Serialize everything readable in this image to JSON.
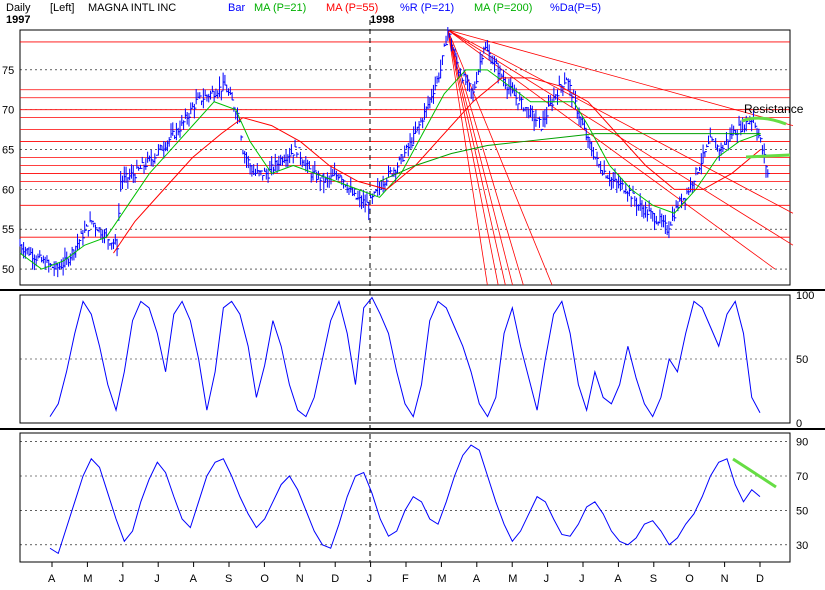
{
  "header": {
    "period": "Daily",
    "scale_side": "[Left]",
    "symbol_name": "MAGNA INTL INC",
    "year_start": "1997",
    "year_mid": "1998",
    "legend": [
      {
        "label": "Bar",
        "color": "#0000ff"
      },
      {
        "label": "MA (P=21)",
        "color": "#00b000"
      },
      {
        "label": "MA (P=55)",
        "color": "#ff0000"
      },
      {
        "label": "%R (P=21)",
        "color": "#0000ff"
      },
      {
        "label": "MA (P=200)",
        "color": "#00b000"
      },
      {
        "label": "%Da(P=5)",
        "color": "#0000ff"
      }
    ]
  },
  "colors": {
    "price_bars": "#0000ff",
    "ma21": "#00c000",
    "ma55": "#ff0000",
    "ma200": "#00a000",
    "support_resistance": "#ff0000",
    "fan_lines": "#ff0000",
    "highlight": "#66dd44",
    "indicator": "#0000ff",
    "grid": "#000000"
  },
  "chart_data": [
    {
      "type": "line",
      "panel": "price",
      "ylim": [
        48,
        80
      ],
      "yticks": [
        50,
        55,
        60,
        65,
        70,
        75
      ],
      "month_labels": [
        "A",
        "M",
        "J",
        "J",
        "A",
        "S",
        "O",
        "N",
        "D",
        "J",
        "F",
        "M",
        "A",
        "M",
        "J",
        "J",
        "A",
        "S",
        "O",
        "N",
        "D"
      ],
      "annotation": "Resistance",
      "price_path": [
        [
          0,
          53
        ],
        [
          6,
          51
        ],
        [
          10,
          50
        ],
        [
          13,
          51
        ],
        [
          17,
          54
        ],
        [
          20,
          56
        ],
        [
          24,
          54
        ],
        [
          27,
          53
        ],
        [
          28,
          61
        ],
        [
          32,
          62
        ],
        [
          37,
          64
        ],
        [
          41,
          66
        ],
        [
          45,
          68
        ],
        [
          49,
          71
        ],
        [
          53,
          72
        ],
        [
          57,
          73
        ],
        [
          61,
          69
        ],
        [
          62,
          65
        ],
        [
          65,
          62
        ],
        [
          69,
          62
        ],
        [
          73,
          64
        ],
        [
          77,
          65
        ],
        [
          81,
          62
        ],
        [
          85,
          61
        ],
        [
          89,
          62
        ],
        [
          93,
          59
        ],
        [
          97,
          58
        ],
        [
          101,
          61
        ],
        [
          105,
          63
        ],
        [
          109,
          66
        ],
        [
          113,
          70
        ],
        [
          117,
          75
        ],
        [
          119,
          80
        ],
        [
          122,
          75
        ],
        [
          126,
          72
        ],
        [
          129,
          78
        ],
        [
          133,
          75
        ],
        [
          137,
          72
        ],
        [
          141,
          70
        ],
        [
          145,
          68
        ],
        [
          149,
          72
        ],
        [
          152,
          74
        ],
        [
          155,
          70
        ],
        [
          158,
          66
        ],
        [
          161,
          63
        ],
        [
          165,
          61
        ],
        [
          169,
          60
        ],
        [
          172,
          58
        ],
        [
          175,
          57
        ],
        [
          178,
          56
        ],
        [
          180,
          55
        ],
        [
          183,
          58
        ],
        [
          186,
          60
        ],
        [
          189,
          63
        ],
        [
          192,
          66
        ],
        [
          195,
          65
        ],
        [
          198,
          67
        ],
        [
          201,
          68
        ],
        [
          204,
          69
        ],
        [
          206,
          66
        ],
        [
          208,
          62
        ]
      ],
      "ma21": [
        [
          0,
          52
        ],
        [
          6,
          50
        ],
        [
          12,
          51
        ],
        [
          18,
          53
        ],
        [
          24,
          54
        ],
        [
          30,
          58
        ],
        [
          36,
          62
        ],
        [
          42,
          65
        ],
        [
          48,
          68
        ],
        [
          54,
          71
        ],
        [
          60,
          70
        ],
        [
          64,
          66
        ],
        [
          70,
          62
        ],
        [
          76,
          63
        ],
        [
          82,
          62
        ],
        [
          88,
          61
        ],
        [
          94,
          60
        ],
        [
          100,
          59
        ],
        [
          106,
          62
        ],
        [
          112,
          67
        ],
        [
          118,
          72
        ],
        [
          124,
          75
        ],
        [
          130,
          75
        ],
        [
          136,
          73
        ],
        [
          142,
          71
        ],
        [
          148,
          71
        ],
        [
          154,
          71
        ],
        [
          158,
          68
        ],
        [
          164,
          63
        ],
        [
          170,
          60
        ],
        [
          176,
          58
        ],
        [
          182,
          57
        ],
        [
          188,
          60
        ],
        [
          194,
          64
        ],
        [
          200,
          66
        ],
        [
          206,
          67
        ]
      ],
      "ma55": [
        [
          26,
          52
        ],
        [
          32,
          56
        ],
        [
          40,
          60
        ],
        [
          48,
          64
        ],
        [
          56,
          67
        ],
        [
          62,
          69
        ],
        [
          70,
          68
        ],
        [
          78,
          66
        ],
        [
          86,
          63
        ],
        [
          94,
          61
        ],
        [
          102,
          60
        ],
        [
          110,
          63
        ],
        [
          118,
          67
        ],
        [
          126,
          71
        ],
        [
          134,
          74
        ],
        [
          142,
          74
        ],
        [
          150,
          73
        ],
        [
          158,
          71
        ],
        [
          166,
          67
        ],
        [
          174,
          63
        ],
        [
          182,
          60
        ],
        [
          190,
          60
        ],
        [
          198,
          62
        ],
        [
          206,
          65
        ]
      ],
      "ma200": [
        [
          100,
          61
        ],
        [
          110,
          63
        ],
        [
          120,
          64.5
        ],
        [
          130,
          65.5
        ],
        [
          140,
          66
        ],
        [
          150,
          66.5
        ],
        [
          160,
          67
        ],
        [
          170,
          67
        ],
        [
          180,
          67
        ],
        [
          190,
          67
        ],
        [
          200,
          67
        ],
        [
          206,
          67
        ]
      ],
      "horizontal_levels": [
        54,
        58,
        61,
        62,
        63,
        64,
        66,
        67.5,
        69,
        70,
        71.5,
        72.5,
        78.5
      ],
      "fan_origin": [
        119,
        80
      ],
      "fan_ends": [
        [
          130,
          48
        ],
        [
          133,
          48
        ],
        [
          135,
          48
        ],
        [
          137,
          48
        ],
        [
          140,
          48
        ],
        [
          148,
          48
        ],
        [
          210,
          50
        ],
        [
          215,
          53
        ],
        [
          215,
          57
        ],
        [
          215,
          68
        ]
      ]
    },
    {
      "type": "line",
      "panel": "percent_r",
      "name": "%R (P=21)",
      "ylim": [
        0,
        100
      ],
      "yticks": [
        0,
        50,
        100
      ],
      "values": [
        5,
        15,
        40,
        70,
        95,
        85,
        60,
        30,
        10,
        40,
        80,
        95,
        90,
        70,
        40,
        85,
        95,
        80,
        50,
        10,
        40,
        90,
        95,
        85,
        60,
        20,
        45,
        80,
        60,
        30,
        10,
        5,
        20,
        50,
        80,
        95,
        70,
        30,
        90,
        98,
        85,
        70,
        40,
        15,
        5,
        30,
        80,
        95,
        90,
        75,
        60,
        40,
        15,
        5,
        20,
        70,
        90,
        60,
        35,
        10,
        50,
        85,
        95,
        70,
        30,
        10,
        40,
        20,
        15,
        30,
        60,
        35,
        15,
        5,
        20,
        50,
        40,
        70,
        95,
        90,
        75,
        60,
        85,
        95,
        70,
        20,
        8
      ]
    },
    {
      "type": "line",
      "panel": "percent_d",
      "name": "%Da(P=5)",
      "ylim": [
        20,
        95
      ],
      "yticks": [
        30,
        50,
        70,
        90
      ],
      "values": [
        28,
        25,
        40,
        55,
        70,
        80,
        75,
        60,
        45,
        32,
        38,
        55,
        68,
        78,
        72,
        58,
        45,
        40,
        55,
        70,
        78,
        80,
        70,
        58,
        48,
        40,
        45,
        55,
        65,
        70,
        62,
        50,
        38,
        30,
        28,
        42,
        58,
        70,
        72,
        60,
        45,
        35,
        38,
        50,
        58,
        55,
        45,
        42,
        55,
        70,
        82,
        88,
        85,
        70,
        55,
        42,
        32,
        38,
        48,
        58,
        55,
        45,
        36,
        35,
        42,
        52,
        55,
        48,
        38,
        32,
        30,
        34,
        42,
        44,
        38,
        30,
        34,
        42,
        48,
        58,
        70,
        78,
        80,
        65,
        55,
        62,
        58
      ]
    }
  ]
}
